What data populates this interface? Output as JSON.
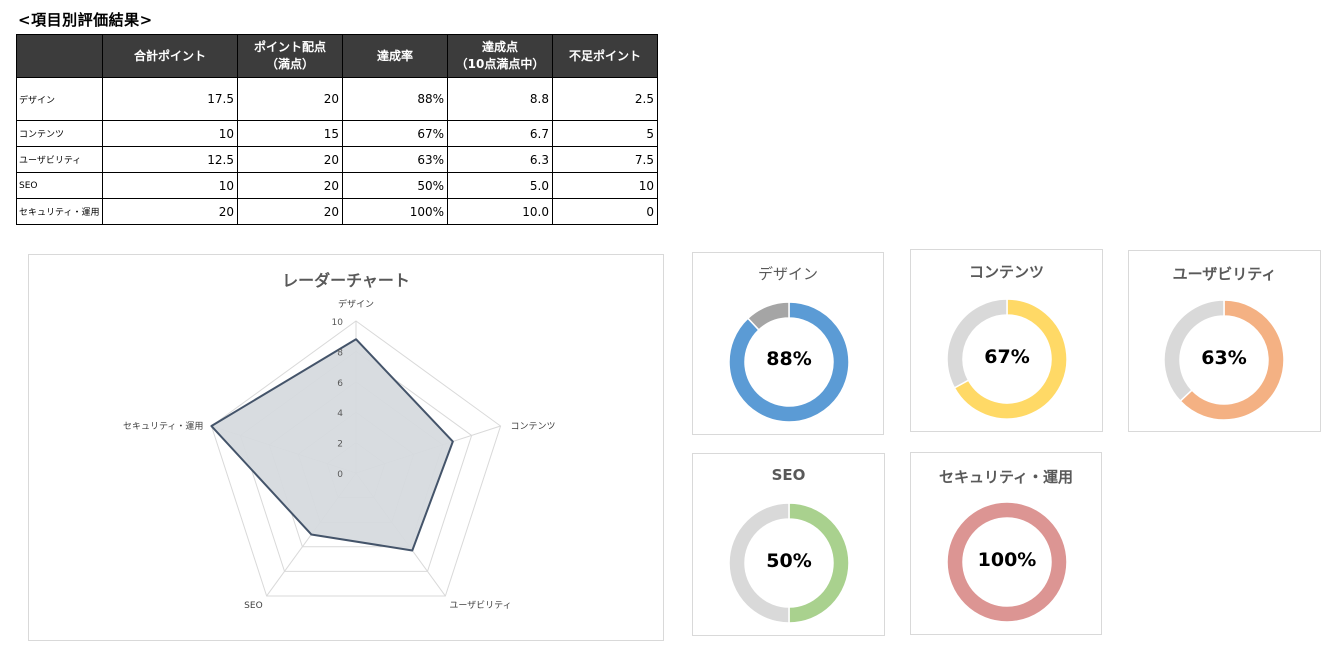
{
  "heading": "<項目別評価結果>",
  "table": {
    "headers": [
      {
        "line1": "",
        "line2": ""
      },
      {
        "line1": "合計ポイント",
        "line2": ""
      },
      {
        "line1": "ポイント配点",
        "line2": "（満点）"
      },
      {
        "line1": "達成率",
        "line2": ""
      },
      {
        "line1": "達成点",
        "line2": "（10点満点中）"
      },
      {
        "line1": "不足ポイント",
        "line2": ""
      }
    ],
    "rows": [
      {
        "label": "デザイン",
        "total": "17.5",
        "max": "20",
        "rate": "88%",
        "score": "8.8",
        "shortfall": "2.5"
      },
      {
        "label": "コンテンツ",
        "total": "10",
        "max": "15",
        "rate": "67%",
        "score": "6.7",
        "shortfall": "5"
      },
      {
        "label": "ユーザビリティ",
        "total": "12.5",
        "max": "20",
        "rate": "63%",
        "score": "6.3",
        "shortfall": "7.5"
      },
      {
        "label": "SEO",
        "total": "10",
        "max": "20",
        "rate": "50%",
        "score": "5.0",
        "shortfall": "10"
      },
      {
        "label": "セキュリティ・運用",
        "total": "20",
        "max": "20",
        "rate": "100%",
        "score": "10.0",
        "shortfall": "0"
      }
    ]
  },
  "chart_data": [
    {
      "type": "radar",
      "title": "レーダーチャート",
      "categories": [
        "デザイン",
        "コンテンツ",
        "ユーザビリティ",
        "SEO",
        "セキュリティ・運用"
      ],
      "values": [
        8.8,
        6.7,
        6.3,
        5.0,
        10.0
      ],
      "rmin": 0,
      "rmax": 10,
      "ticks": [
        "0",
        "2",
        "4",
        "6",
        "8",
        "10"
      ],
      "fill_color": "#d6dade",
      "line_color": "#44546a"
    },
    {
      "type": "pie",
      "donut": true,
      "title": "デザイン",
      "values": [
        88,
        12
      ],
      "center_label": "88%",
      "colors": [
        "#5b9bd5",
        "#a5a5a5"
      ]
    },
    {
      "type": "pie",
      "donut": true,
      "title": "コンテンツ",
      "values": [
        67,
        33
      ],
      "center_label": "67%",
      "colors": [
        "#ffd966",
        "#d9d9d9"
      ]
    },
    {
      "type": "pie",
      "donut": true,
      "title": "ユーザビリティ",
      "values": [
        63,
        37
      ],
      "center_label": "63%",
      "colors": [
        "#f4b183",
        "#d9d9d9"
      ]
    },
    {
      "type": "pie",
      "donut": true,
      "title": "SEO",
      "values": [
        50,
        50
      ],
      "center_label": "50%",
      "colors": [
        "#a9d18e",
        "#d9d9d9"
      ]
    },
    {
      "type": "pie",
      "donut": true,
      "title": "セキュリティ・運用",
      "values": [
        100,
        0
      ],
      "center_label": "100%",
      "colors": [
        "#dc9593",
        "#d9d9d9"
      ]
    }
  ]
}
